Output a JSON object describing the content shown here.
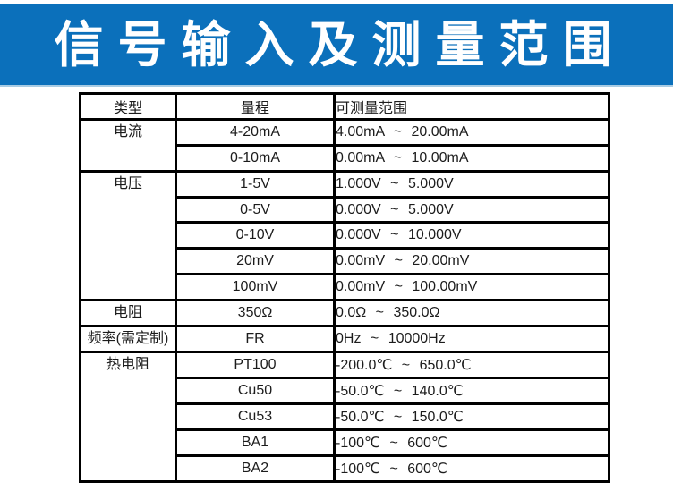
{
  "banner": {
    "title": "信号输入及测量范围",
    "bg_color": "#0b70bb",
    "edge_color": "#a8cce4",
    "text_color": "#ffffff"
  },
  "table": {
    "border_color": "#000000",
    "text_color": "#1c1c1c",
    "headers": [
      "类型",
      "量程",
      "可测量范围"
    ],
    "groups": [
      {
        "type": "电流",
        "rows": [
          {
            "range": "4-20mA",
            "measurable": "4.00mA ~ 20.00mA"
          },
          {
            "range": "0-10mA",
            "measurable": "0.00mA ~ 10.00mA"
          }
        ]
      },
      {
        "type": "电压",
        "rows": [
          {
            "range": "1-5V",
            "measurable": "1.000V ~ 5.000V"
          },
          {
            "range": "0-5V",
            "measurable": "0.000V ~ 5.000V"
          },
          {
            "range": "0-10V",
            "measurable": "0.000V ~ 10.000V"
          },
          {
            "range": "20mV",
            "measurable": "0.00mV ~ 20.00mV"
          },
          {
            "range": "100mV",
            "measurable": "0.00mV ~ 100.00mV"
          }
        ]
      },
      {
        "type": "电阻",
        "rows": [
          {
            "range": "350Ω",
            "measurable": "0.0Ω ~ 350.0Ω"
          }
        ]
      },
      {
        "type": "频率(需定制)",
        "rows": [
          {
            "range": "FR",
            "measurable": "0Hz ~ 10000Hz"
          }
        ]
      },
      {
        "type": "热电阻",
        "rows": [
          {
            "range": "PT100",
            "measurable": "-200.0℃ ~ 650.0℃"
          },
          {
            "range": "Cu50",
            "measurable": "-50.0℃ ~ 140.0℃"
          },
          {
            "range": "Cu53",
            "measurable": "-50.0℃ ~ 150.0℃"
          },
          {
            "range": "BA1",
            "measurable": "-100℃ ~ 600℃"
          },
          {
            "range": "BA2",
            "measurable": "-100℃ ~ 600℃"
          }
        ]
      }
    ]
  }
}
